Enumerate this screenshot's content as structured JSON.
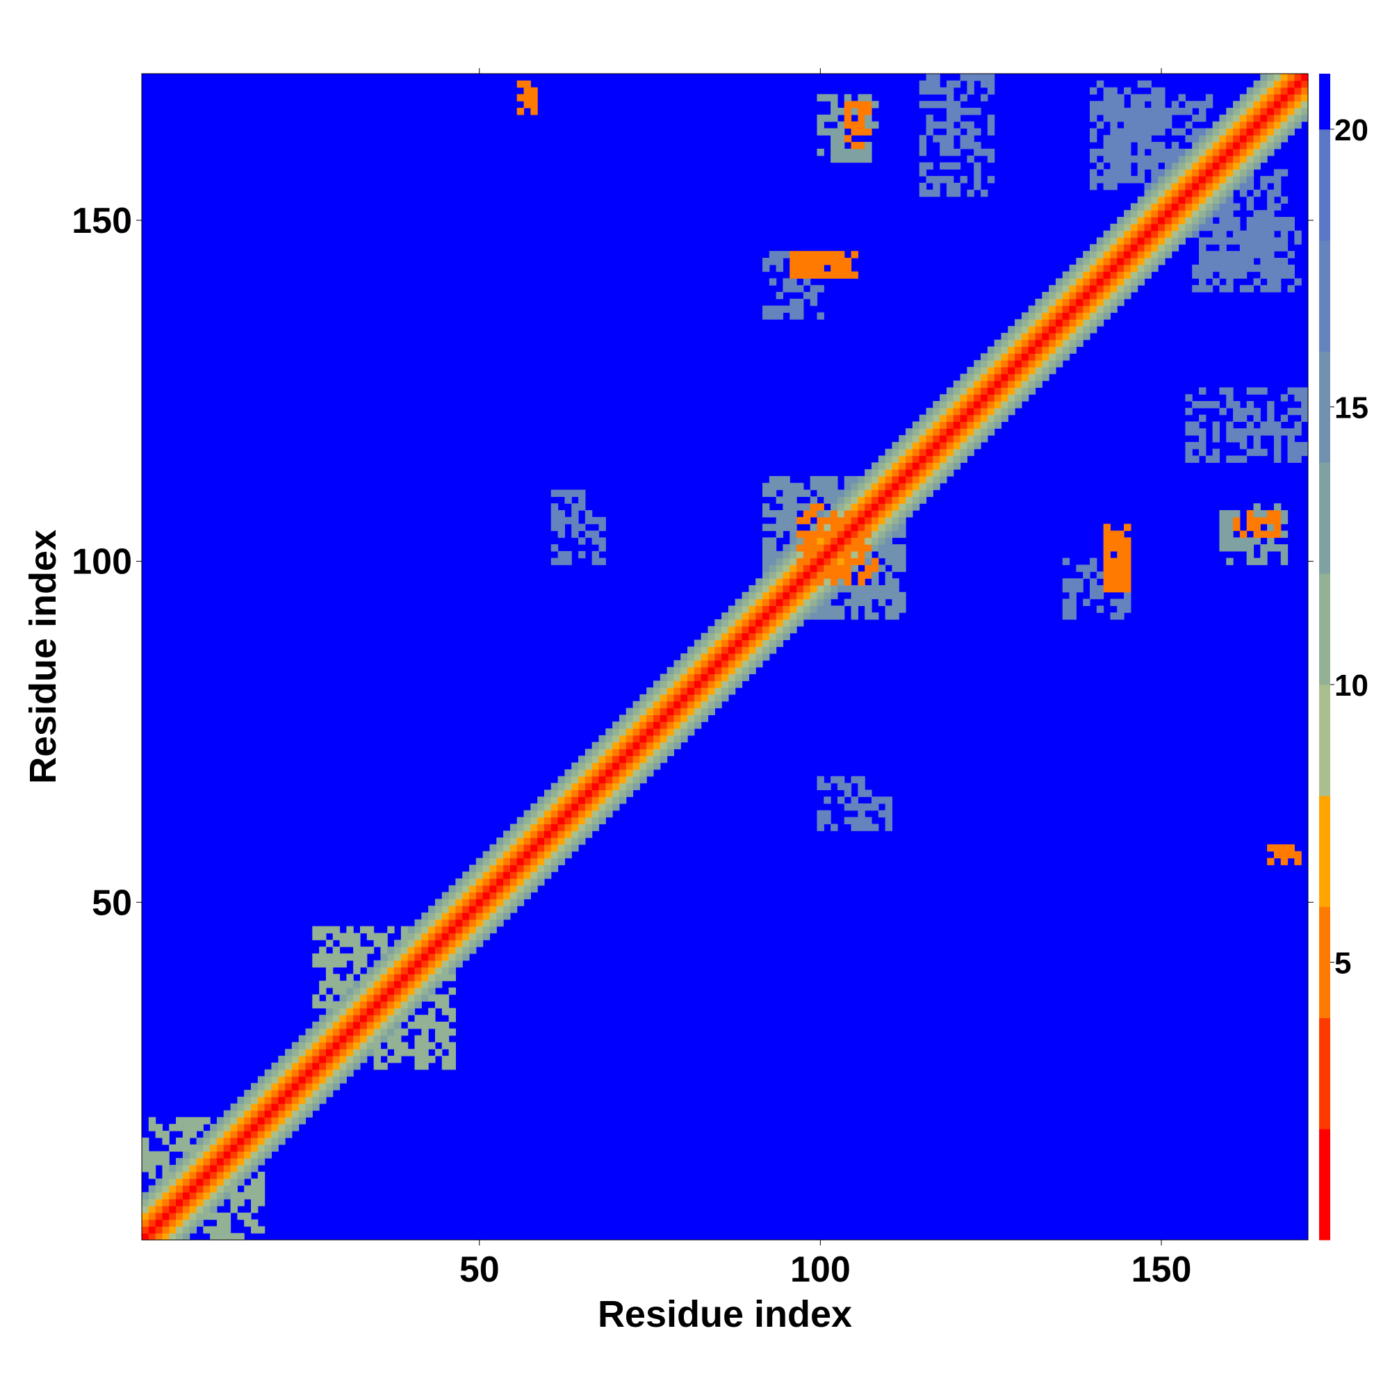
{
  "chart_data": {
    "type": "heatmap",
    "title": "",
    "xlabel": "Residue index",
    "ylabel": "Residue index",
    "n_residues": 171,
    "xlim": [
      1,
      171
    ],
    "ylim": [
      1,
      171
    ],
    "x_ticks": [
      50,
      100,
      150
    ],
    "y_ticks": [
      50,
      100,
      150
    ],
    "x_tick_labels": [
      "50",
      "100",
      "150"
    ],
    "y_tick_labels": [
      "50",
      "100",
      "150"
    ],
    "colorbar": {
      "range": [
        0,
        21
      ],
      "ticks": [
        5,
        10,
        15,
        20
      ],
      "tick_labels": [
        "5",
        "10",
        "15",
        "20"
      ],
      "colors": [
        {
          "max": 2,
          "color": "#ff0000"
        },
        {
          "max": 4,
          "color": "#ff3a00"
        },
        {
          "max": 6,
          "color": "#ff7a00"
        },
        {
          "max": 8,
          "color": "#ffa400"
        },
        {
          "max": 10,
          "color": "#a9bf8e"
        },
        {
          "max": 12,
          "color": "#93b195"
        },
        {
          "max": 14,
          "color": "#80a1a2"
        },
        {
          "max": 16,
          "color": "#7191b1"
        },
        {
          "max": 18,
          "color": "#6583bd"
        },
        {
          "max": 20,
          "color": "#5a78c6"
        },
        {
          "max": 21,
          "color": "#0000ff"
        }
      ]
    },
    "background_value": 21,
    "diagonal_profile": [
      {
        "offset": 0,
        "value": 1
      },
      {
        "offset": 1,
        "value": 3
      },
      {
        "offset": 2,
        "value": 5
      },
      {
        "offset": 3,
        "value": 7
      },
      {
        "offset": 4,
        "value": 9
      },
      {
        "offset": 5,
        "value": 11
      },
      {
        "offset": 6,
        "value": 13
      }
    ],
    "contact_patches": [
      {
        "x": [
          57,
          58
        ],
        "y": [
          167,
          171
        ],
        "value": 6
      },
      {
        "x": [
          100,
          108
        ],
        "y": [
          160,
          168
        ],
        "value": 14
      },
      {
        "x": [
          104,
          107
        ],
        "y": [
          162,
          167
        ],
        "value": 6
      },
      {
        "x": [
          96,
          104
        ],
        "y": [
          142,
          145
        ],
        "value": 6
      },
      {
        "x": [
          92,
          111
        ],
        "y": [
          95,
          112
        ],
        "value": 16
      },
      {
        "x": [
          98,
          106
        ],
        "y": [
          97,
          108
        ],
        "value": 6
      },
      {
        "x": [
          142,
          145
        ],
        "y": [
          97,
          105
        ],
        "value": 6
      },
      {
        "x": [
          159,
          166
        ],
        "y": [
          102,
          107
        ],
        "value": 14
      },
      {
        "x": [
          161,
          165
        ],
        "y": [
          104,
          106
        ],
        "value": 6
      },
      {
        "x": [
          166,
          170
        ],
        "y": [
          55,
          58
        ],
        "value": 6
      },
      {
        "x": [
          140,
          150
        ],
        "y": [
          155,
          170
        ],
        "value": 18
      },
      {
        "x": [
          158,
          168
        ],
        "y": [
          143,
          157
        ],
        "value": 18
      },
      {
        "x": [
          115,
          125
        ],
        "y": [
          154,
          171
        ],
        "value": 18
      },
      {
        "x": [
          136,
          145
        ],
        "y": [
          92,
          100
        ],
        "value": 18
      },
      {
        "x": [
          10,
          18
        ],
        "y": [
          1,
          10
        ],
        "value": 12
      },
      {
        "x": [
          26,
          42
        ],
        "y": [
          35,
          46
        ],
        "value": 12
      },
      {
        "x": [
          100,
          110
        ],
        "y": [
          61,
          68
        ],
        "value": 18
      }
    ]
  }
}
